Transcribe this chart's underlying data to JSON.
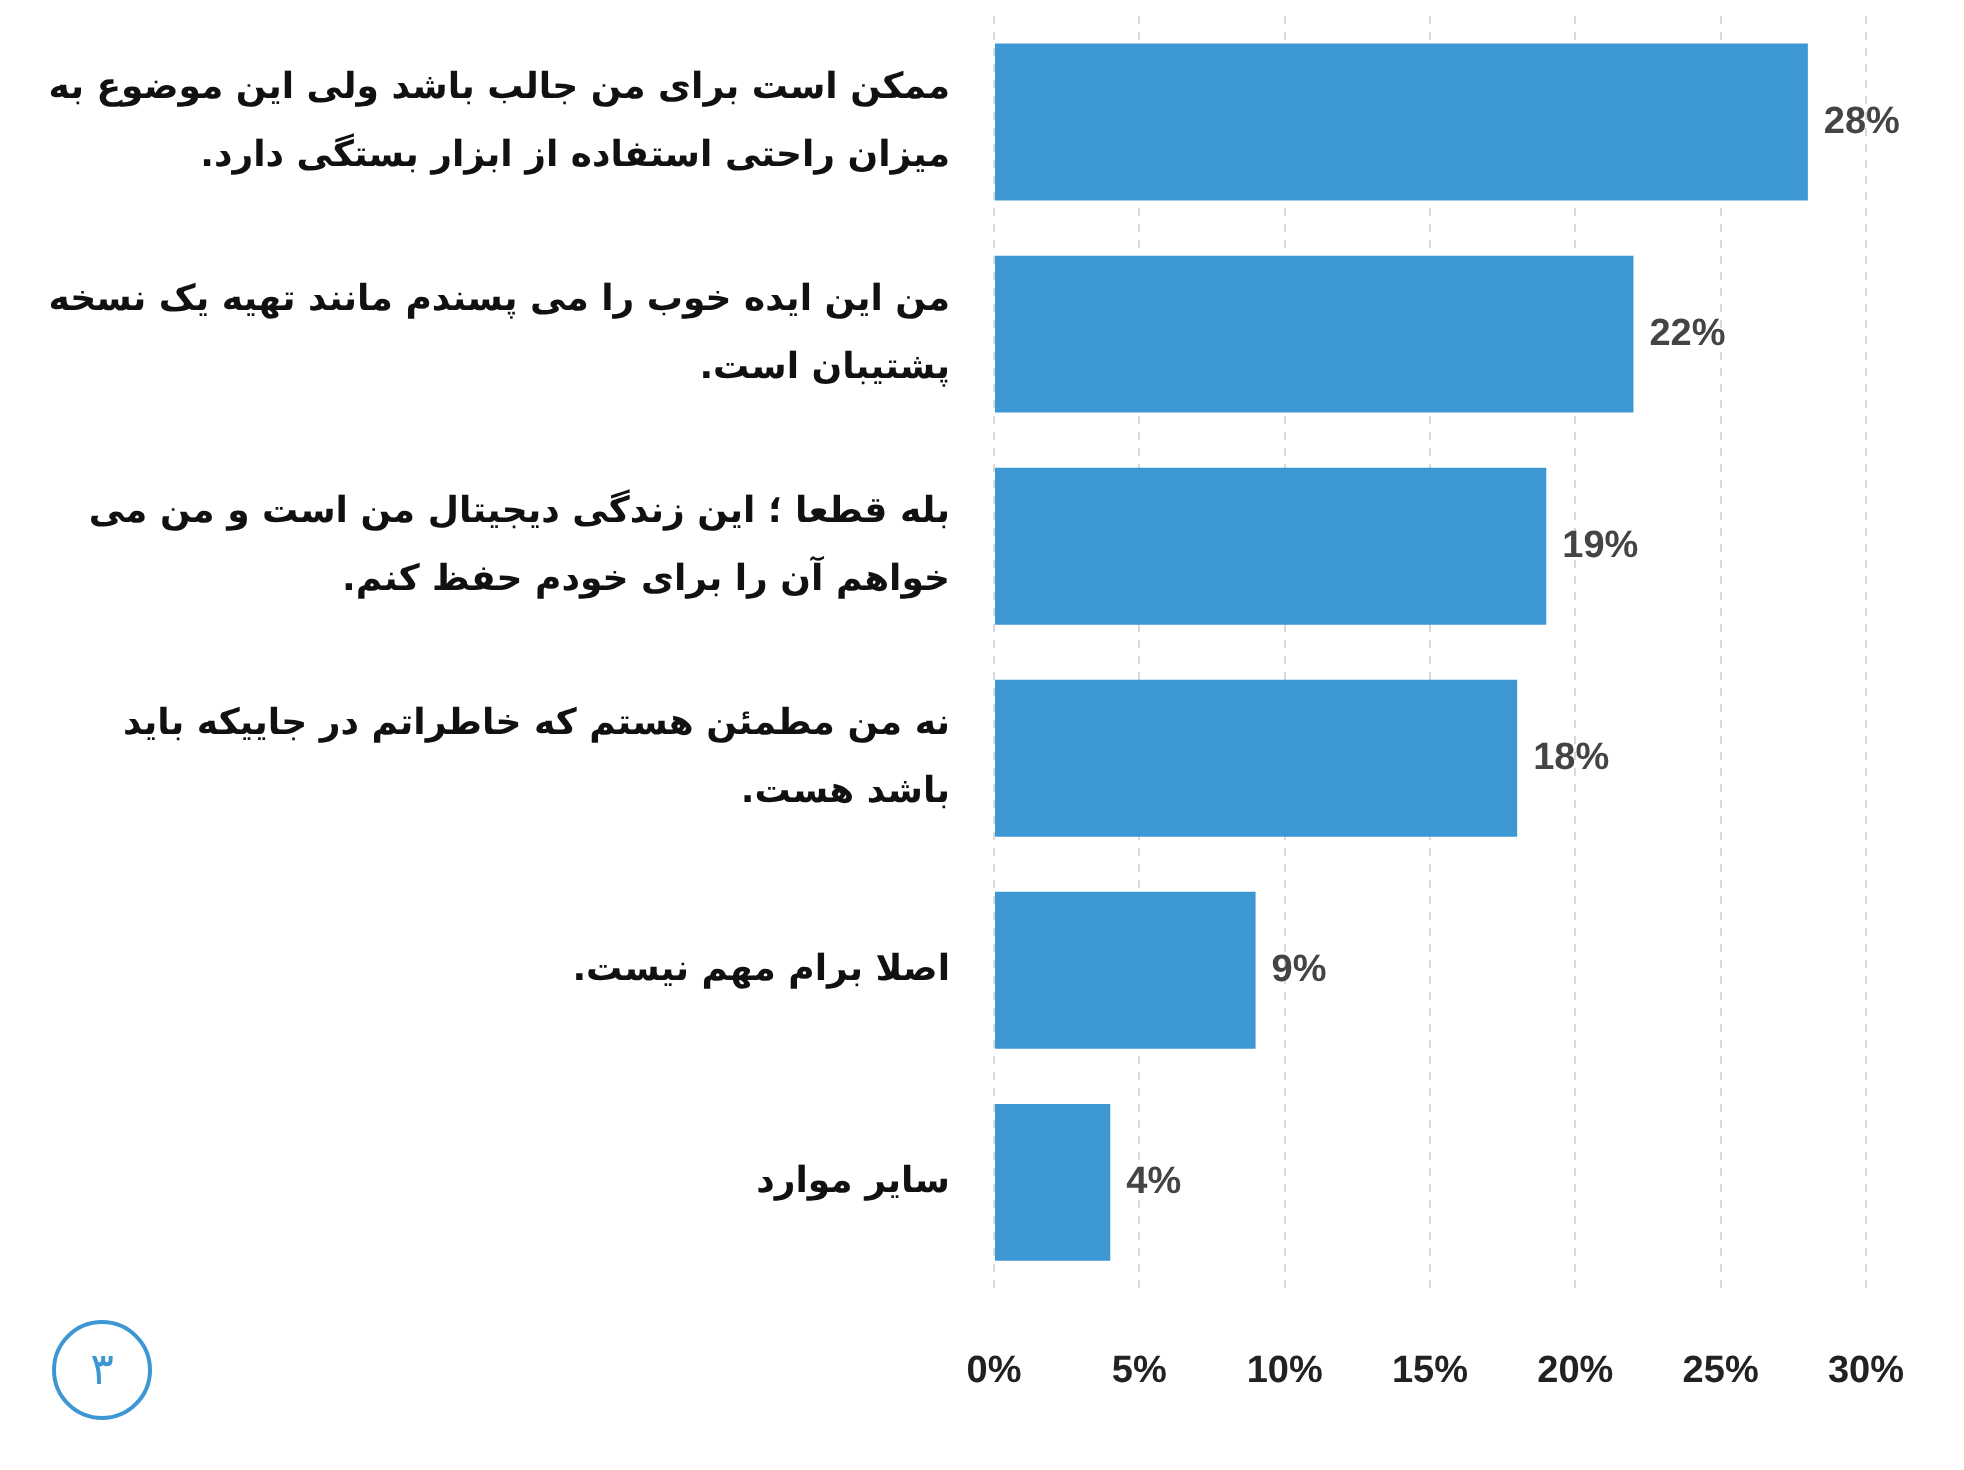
{
  "chart_data": {
    "type": "bar",
    "orientation": "horizontal",
    "categories": [
      "ممکن است برای من جالب باشد ولی این موضوع به میزان راحتی استفاده از ابزار بستگی دارد.",
      "من این ایده خوب را می پسندم مانند تهیه یک نسخه پشتیبان است.",
      "بله قطعا ؛ این زندگی دیجیتال من است و من می خواهم آن را برای خودم حفظ کنم.",
      "نه من مطمئن هستم که خاطراتم در جاییکه باید باشد هست.",
      "اصلا برام مهم نیست.",
      "سایر موارد"
    ],
    "values": [
      28,
      22,
      19,
      18,
      9,
      4
    ],
    "value_labels": [
      "28%",
      "22%",
      "19%",
      "18%",
      "9%",
      "4%"
    ],
    "color": "#3d97d3",
    "xlim": [
      0,
      30
    ],
    "xticks": [
      {
        "value": 0,
        "label": "0%"
      },
      {
        "value": 5,
        "label": "5%"
      },
      {
        "value": 10,
        "label": "10%"
      },
      {
        "value": 15,
        "label": "15%"
      },
      {
        "value": 20,
        "label": "20%"
      },
      {
        "value": 25,
        "label": "25%"
      },
      {
        "value": 30,
        "label": "30%"
      }
    ],
    "grid": "x",
    "legend": false,
    "annotations": [
      "۳"
    ]
  }
}
